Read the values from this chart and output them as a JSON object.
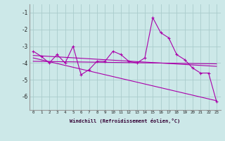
{
  "xlabel": "Windchill (Refroidissement éolien,°C)",
  "x": [
    0,
    1,
    2,
    3,
    4,
    5,
    6,
    7,
    8,
    9,
    10,
    11,
    12,
    13,
    14,
    15,
    16,
    17,
    18,
    19,
    20,
    21,
    22,
    23
  ],
  "line1": [
    -3.3,
    -3.6,
    -4.0,
    -3.5,
    -4.0,
    -3.0,
    -4.7,
    -4.4,
    -3.9,
    -3.9,
    -3.3,
    -3.5,
    -3.9,
    -4.0,
    -3.7,
    -1.3,
    -2.2,
    -2.5,
    -3.5,
    -3.8,
    -4.3,
    -4.6,
    -4.6,
    -6.3
  ],
  "line2_x": [
    0,
    23
  ],
  "line2_y": [
    -3.55,
    -4.2
  ],
  "line3_x": [
    0,
    23
  ],
  "line3_y": [
    -3.9,
    -4.05
  ],
  "line4_x": [
    0,
    23
  ],
  "line4_y": [
    -3.7,
    -6.25
  ],
  "ylim": [
    -6.8,
    -0.5
  ],
  "xlim": [
    -0.5,
    23.5
  ],
  "yticks": [
    -6,
    -5,
    -4,
    -3,
    -2,
    -1
  ],
  "xticks": [
    0,
    1,
    2,
    3,
    4,
    5,
    6,
    7,
    8,
    9,
    10,
    11,
    12,
    13,
    14,
    15,
    16,
    17,
    18,
    19,
    20,
    21,
    22,
    23
  ],
  "line_color": "#aa00aa",
  "bg_color": "#cce8e8",
  "grid_color": "#aacccc"
}
